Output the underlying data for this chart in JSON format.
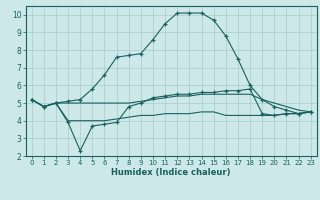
{
  "xlabel": "Humidex (Indice chaleur)",
  "background_color": "#cce8e8",
  "grid_color": "#aacccc",
  "line_color": "#1a6060",
  "xlim": [
    -0.5,
    23.5
  ],
  "ylim": [
    2,
    10.5
  ],
  "xticks": [
    0,
    1,
    2,
    3,
    4,
    5,
    6,
    7,
    8,
    9,
    10,
    11,
    12,
    13,
    14,
    15,
    16,
    17,
    18,
    19,
    20,
    21,
    22,
    23
  ],
  "yticks": [
    2,
    3,
    4,
    5,
    6,
    7,
    8,
    9,
    10
  ],
  "series": [
    {
      "x": [
        0,
        1,
        2,
        3,
        4,
        5,
        6,
        7,
        8,
        9,
        10,
        11,
        12,
        13,
        14,
        15,
        16,
        17,
        18,
        19,
        20,
        21,
        22,
        23
      ],
      "y": [
        5.2,
        4.8,
        5.0,
        5.1,
        5.2,
        5.8,
        6.6,
        7.6,
        7.7,
        7.8,
        8.6,
        9.5,
        10.1,
        10.1,
        10.1,
        9.7,
        8.8,
        7.5,
        6.0,
        5.2,
        4.8,
        4.6,
        4.4,
        4.5
      ],
      "marker": "+"
    },
    {
      "x": [
        0,
        1,
        2,
        3,
        4,
        5,
        6,
        7,
        8,
        9,
        10,
        11,
        12,
        13,
        14,
        15,
        16,
        17,
        18,
        19,
        20,
        21,
        22,
        23
      ],
      "y": [
        5.2,
        4.8,
        5.0,
        5.0,
        5.0,
        5.0,
        5.0,
        5.0,
        5.0,
        5.1,
        5.2,
        5.3,
        5.4,
        5.4,
        5.5,
        5.5,
        5.5,
        5.5,
        5.5,
        5.2,
        5.0,
        4.8,
        4.6,
        4.5
      ],
      "marker": null
    },
    {
      "x": [
        0,
        1,
        2,
        3,
        4,
        5,
        6,
        7,
        8,
        9,
        10,
        11,
        12,
        13,
        14,
        15,
        16,
        17,
        18,
        19,
        20,
        21,
        22,
        23
      ],
      "y": [
        5.2,
        4.8,
        5.0,
        4.0,
        4.0,
        4.0,
        4.0,
        4.1,
        4.2,
        4.3,
        4.3,
        4.4,
        4.4,
        4.4,
        4.5,
        4.5,
        4.3,
        4.3,
        4.3,
        4.3,
        4.3,
        4.4,
        4.4,
        4.5
      ],
      "marker": null
    },
    {
      "x": [
        0,
        1,
        2,
        3,
        4,
        5,
        6,
        7,
        8,
        9,
        10,
        11,
        12,
        13,
        14,
        15,
        16,
        17,
        18,
        19,
        20,
        21,
        22,
        23
      ],
      "y": [
        5.2,
        4.8,
        5.0,
        3.9,
        2.3,
        3.7,
        3.8,
        3.9,
        4.8,
        5.0,
        5.3,
        5.4,
        5.5,
        5.5,
        5.6,
        5.6,
        5.7,
        5.7,
        5.8,
        4.4,
        4.3,
        4.4,
        4.4,
        4.5
      ],
      "marker": "+"
    }
  ]
}
